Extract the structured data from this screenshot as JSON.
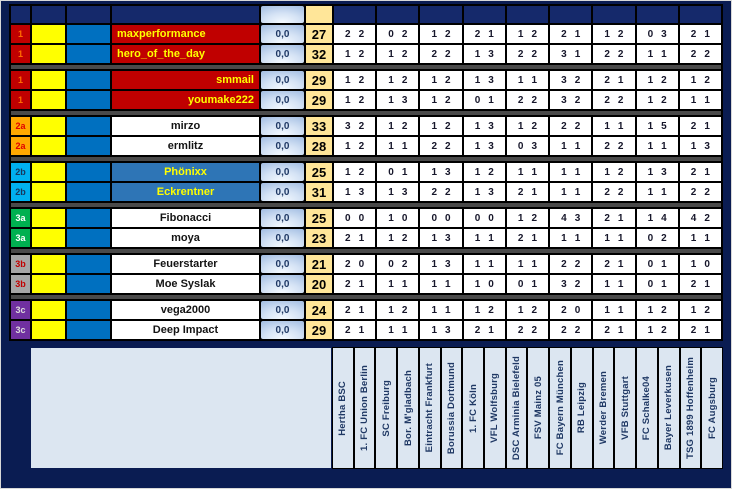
{
  "palette": {
    "navy": "#0A1C52",
    "header_cell": "#15296B",
    "yellow": "#FFFF00",
    "blue": "#0070C0",
    "score_bg": "#FFE699",
    "grid_bg": "#FFFFFF",
    "sep": "#4A4A4A",
    "team_bg": "#DCE6F1",
    "team_fg": "#1F3864",
    "btn_fg": "#1F3864"
  },
  "groups": {
    "1": {
      "rank_bg": "#C00000",
      "rank_fg": "#FF6A00",
      "name_bg": "#C00000",
      "name_fg": "#FFFF00"
    },
    "2a": {
      "rank_bg": "#FFA800",
      "rank_fg": "#E00000",
      "name_bg": "#FFFFFF",
      "name_fg": "#141414"
    },
    "2b": {
      "rank_bg": "#00B0F0",
      "rank_fg": "#17375E",
      "name_bg": "#2E75B6",
      "name_fg": "#FFFF00"
    },
    "3a": {
      "rank_bg": "#00B050",
      "rank_fg": "#FFFFFF",
      "name_bg": "#FFFFFF",
      "name_fg": "#141414"
    },
    "3b": {
      "rank_bg": "#A6A6A6",
      "rank_fg": "#C00000",
      "name_bg": "#FFFFFF",
      "name_fg": "#141414"
    },
    "3c": {
      "rank_bg": "#7030A0",
      "rank_fg": "#DCDCDC",
      "name_bg": "#FFFFFF",
      "name_fg": "#141414"
    }
  },
  "rows": [
    {
      "rank": "1",
      "group": "1",
      "name": "maxperformance",
      "align": "left",
      "points": "0,0",
      "score": "27",
      "preds": [
        "2 2",
        "0 2",
        "1 2",
        "2 1",
        "1 2",
        "2 1",
        "1 2",
        "0 3",
        "2 1"
      ]
    },
    {
      "rank": "1",
      "group": "1",
      "name": "hero_of_the_day",
      "align": "left",
      "points": "0,0",
      "score": "32",
      "preds": [
        "1 2",
        "1 2",
        "2 2",
        "1 3",
        "2 2",
        "3 1",
        "2 2",
        "1 1",
        "2 2"
      ]
    },
    {
      "rank": "1",
      "group": "1",
      "name": "smmail",
      "align": "right",
      "points": "0,0",
      "score": "29",
      "preds": [
        "1 2",
        "1 2",
        "1 2",
        "1 3",
        "1 1",
        "3 2",
        "2 1",
        "1 2",
        "1 2"
      ]
    },
    {
      "rank": "1",
      "group": "1",
      "name": "youmake222",
      "align": "right",
      "points": "0,0",
      "score": "29",
      "preds": [
        "1 2",
        "1 3",
        "1 2",
        "0 1",
        "2 2",
        "3 2",
        "2 2",
        "1 2",
        "1 1"
      ]
    },
    {
      "rank": "2a",
      "group": "2a",
      "name": "mirzo",
      "align": "center",
      "points": "0,0",
      "score": "33",
      "preds": [
        "3 2",
        "1 2",
        "1 2",
        "1 3",
        "1 2",
        "2 2",
        "1 1",
        "1 5",
        "2 1"
      ]
    },
    {
      "rank": "2a",
      "group": "2a",
      "name": "ermlitz",
      "align": "center",
      "points": "0,0",
      "score": "28",
      "preds": [
        "1 2",
        "1 1",
        "2 2",
        "1 3",
        "0 3",
        "1 1",
        "2 2",
        "1 1",
        "1 3"
      ]
    },
    {
      "rank": "2b",
      "group": "2b",
      "name": "Phönixx",
      "align": "center",
      "points": "0,0",
      "score": "25",
      "preds": [
        "1 2",
        "0 1",
        "1 3",
        "1 2",
        "1 1",
        "1 1",
        "1 2",
        "1 3",
        "2 1"
      ]
    },
    {
      "rank": "2b",
      "group": "2b",
      "name": "Eckrentner",
      "align": "center",
      "points": "0,0",
      "score": "31",
      "preds": [
        "1 3",
        "1 3",
        "2 2",
        "1 3",
        "2 1",
        "1 1",
        "2 2",
        "1 1",
        "2 2"
      ]
    },
    {
      "rank": "3a",
      "group": "3a",
      "name": "Fibonacci",
      "align": "center",
      "points": "0,0",
      "score": "25",
      "preds": [
        "0 0",
        "1 0",
        "0 0",
        "0 0",
        "1 2",
        "4 3",
        "2 1",
        "1 4",
        "4 2"
      ]
    },
    {
      "rank": "3a",
      "group": "3a",
      "name": "moya",
      "align": "center",
      "points": "0,0",
      "score": "23",
      "preds": [
        "2 1",
        "1 2",
        "1 3",
        "1 1",
        "2 1",
        "1 1",
        "1 1",
        "0 2",
        "1 1"
      ]
    },
    {
      "rank": "3b",
      "group": "3b",
      "name": "Feuerstarter",
      "align": "center",
      "points": "0,0",
      "score": "21",
      "preds": [
        "2 0",
        "0 2",
        "1 3",
        "1 1",
        "1 1",
        "2 2",
        "2 1",
        "0 1",
        "1 0"
      ]
    },
    {
      "rank": "3b",
      "group": "3b",
      "name": "Moe Syslak",
      "align": "center",
      "points": "0,0",
      "score": "20",
      "preds": [
        "2 1",
        "1 1",
        "1 1",
        "1 0",
        "0 1",
        "3 2",
        "1 1",
        "0 1",
        "2 1"
      ]
    },
    {
      "rank": "3c",
      "group": "3c",
      "name": "vega2000",
      "align": "center",
      "points": "0,0",
      "score": "24",
      "preds": [
        "2 1",
        "1 2",
        "1 1",
        "1 2",
        "1 2",
        "2 0",
        "1 1",
        "1 2",
        "1 2"
      ]
    },
    {
      "rank": "3c",
      "group": "3c",
      "name": "Deep Impact",
      "align": "center",
      "points": "0,0",
      "score": "29",
      "preds": [
        "2 1",
        "1 1",
        "1 3",
        "2 1",
        "2 2",
        "2 2",
        "2 1",
        "1 2",
        "2 1"
      ]
    }
  ],
  "teams": [
    "Hertha BSC",
    "1. FC Union Berlin",
    "SC Freiburg",
    "Bor. M'gladbach",
    "Eintracht Frankfurt",
    "Borussia Dortmund",
    "1. FC Köln",
    "VFL Wolfsburg",
    "DSC Arminia Bielefeld",
    "FSV Mainz 05",
    "FC Bayern München",
    "RB Leipzig",
    "Werder Bremen",
    "VFB Stuttgart",
    "FC Schalke04",
    "Bayer Leverkusen",
    "TSG 1899 Hoffenheim",
    "FC Augsburg"
  ]
}
